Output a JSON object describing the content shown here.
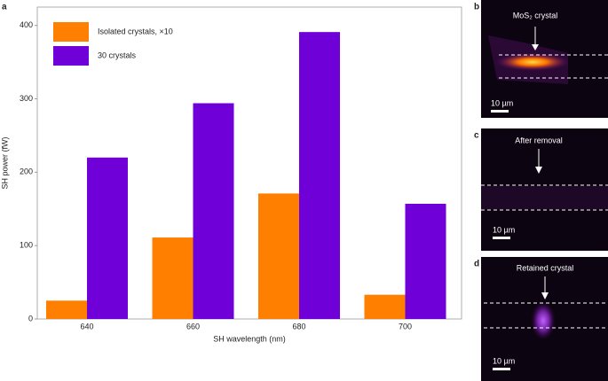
{
  "chart_data": {
    "type": "bar",
    "panel_label": "a",
    "x_label": "SH wavelength (nm)",
    "y_label": "SH power (fW)",
    "categories": [
      "640",
      "660",
      "680",
      "700"
    ],
    "series": [
      {
        "name": "Isolated crystals, ×10",
        "color": "#ff8000",
        "values": [
          25,
          111,
          171,
          33
        ]
      },
      {
        "name": "30 crystals",
        "color": "#7000d8",
        "values": [
          220,
          294,
          391,
          157
        ]
      }
    ],
    "ylim": [
      0,
      425
    ],
    "yticks": [
      0,
      100,
      200,
      300,
      400
    ],
    "legend": "upper left"
  },
  "images": [
    {
      "label": "b",
      "annotation": "MoS₂ crystal",
      "scale_bar": "10 µm"
    },
    {
      "label": "c",
      "annotation": "After removal",
      "scale_bar": "10 µm"
    },
    {
      "label": "d",
      "annotation": "Retained crystal",
      "scale_bar": "10 µm"
    }
  ]
}
